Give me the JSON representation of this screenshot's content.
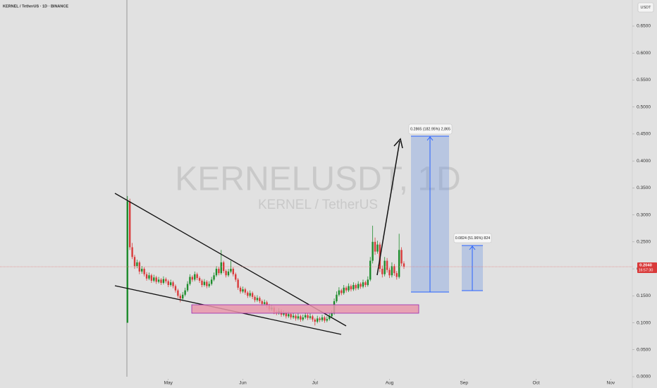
{
  "header": {
    "title": "KERNEL / TetherUS · 1D · BINANCE",
    "currency": "USDT"
  },
  "watermark": {
    "symbol": "KERNELUSDT, 1D",
    "name": "KERNEL / TetherUS"
  },
  "annotations": {
    "measure_1": "0.2865 (182.95%) 2,865",
    "measure_2": "0.0824 (51.96%) 824"
  },
  "last_price": {
    "value": 0.204,
    "label": "0.2040",
    "countdown": "16:57:30"
  },
  "chart_data": {
    "type": "candlestick",
    "up_color": "#1e8c2c",
    "down_color": "#d93a3a",
    "xlim": [
      -53,
      210
    ],
    "xticks": [
      {
        "value": 17,
        "label": "May"
      },
      {
        "value": 48,
        "label": "Jun"
      },
      {
        "value": 78,
        "label": "Jul"
      },
      {
        "value": 109,
        "label": "Aug"
      },
      {
        "value": 140,
        "label": "Sep"
      },
      {
        "value": 170,
        "label": "Oct"
      },
      {
        "value": 201,
        "label": "Nov"
      }
    ],
    "ylim": [
      0,
      0.69
    ],
    "yticks": [
      {
        "value": 0,
        "label": "0.0000"
      },
      {
        "value": 0.05,
        "label": "0.0500"
      },
      {
        "value": 0.1,
        "label": "0.1000"
      },
      {
        "value": 0.15,
        "label": "0.1500"
      },
      {
        "value": 0.2,
        "label": "0.2000"
      },
      {
        "value": 0.25,
        "label": "0.2500"
      },
      {
        "value": 0.3,
        "label": "0.3000"
      },
      {
        "value": 0.35,
        "label": "0.3500"
      },
      {
        "value": 0.4,
        "label": "0.4000"
      },
      {
        "value": 0.45,
        "label": "0.4500"
      },
      {
        "value": 0.5,
        "label": "0.5000"
      },
      {
        "value": 0.55,
        "label": "0.5500"
      },
      {
        "value": 0.6,
        "label": "0.6000"
      },
      {
        "value": 0.65,
        "label": "0.6500"
      }
    ],
    "candles": [
      [
        0.1,
        0.335,
        0.1,
        0.325
      ],
      [
        0.325,
        0.33,
        0.235,
        0.24
      ],
      [
        0.24,
        0.248,
        0.218,
        0.222
      ],
      [
        0.222,
        0.226,
        0.2,
        0.205
      ],
      [
        0.205,
        0.217,
        0.201,
        0.212
      ],
      [
        0.212,
        0.215,
        0.19,
        0.195
      ],
      [
        0.195,
        0.205,
        0.191,
        0.2
      ],
      [
        0.2,
        0.203,
        0.186,
        0.19
      ],
      [
        0.19,
        0.194,
        0.178,
        0.182
      ],
      [
        0.182,
        0.193,
        0.179,
        0.188
      ],
      [
        0.188,
        0.191,
        0.174,
        0.178
      ],
      [
        0.178,
        0.189,
        0.175,
        0.184
      ],
      [
        0.184,
        0.187,
        0.172,
        0.176
      ],
      [
        0.176,
        0.185,
        0.173,
        0.18
      ],
      [
        0.18,
        0.183,
        0.17,
        0.174
      ],
      [
        0.174,
        0.186,
        0.171,
        0.181
      ],
      [
        0.181,
        0.184,
        0.173,
        0.177
      ],
      [
        0.177,
        0.18,
        0.166,
        0.17
      ],
      [
        0.17,
        0.18,
        0.167,
        0.175
      ],
      [
        0.175,
        0.178,
        0.164,
        0.168
      ],
      [
        0.168,
        0.171,
        0.156,
        0.16
      ],
      [
        0.16,
        0.163,
        0.146,
        0.15
      ],
      [
        0.15,
        0.154,
        0.138,
        0.145
      ],
      [
        0.145,
        0.157,
        0.142,
        0.152
      ],
      [
        0.152,
        0.165,
        0.149,
        0.16
      ],
      [
        0.16,
        0.177,
        0.157,
        0.172
      ],
      [
        0.172,
        0.19,
        0.169,
        0.185
      ],
      [
        0.185,
        0.188,
        0.176,
        0.18
      ],
      [
        0.18,
        0.195,
        0.177,
        0.19
      ],
      [
        0.19,
        0.193,
        0.179,
        0.183
      ],
      [
        0.183,
        0.186,
        0.174,
        0.178
      ],
      [
        0.178,
        0.181,
        0.166,
        0.17
      ],
      [
        0.17,
        0.181,
        0.167,
        0.176
      ],
      [
        0.176,
        0.179,
        0.164,
        0.168
      ],
      [
        0.168,
        0.177,
        0.165,
        0.172
      ],
      [
        0.172,
        0.185,
        0.169,
        0.18
      ],
      [
        0.18,
        0.193,
        0.177,
        0.188
      ],
      [
        0.188,
        0.205,
        0.185,
        0.2
      ],
      [
        0.2,
        0.204,
        0.188,
        0.192
      ],
      [
        0.192,
        0.235,
        0.189,
        0.212
      ],
      [
        0.212,
        0.215,
        0.192,
        0.196
      ],
      [
        0.196,
        0.199,
        0.184,
        0.188
      ],
      [
        0.188,
        0.2,
        0.185,
        0.195
      ],
      [
        0.195,
        0.215,
        0.192,
        0.2
      ],
      [
        0.2,
        0.203,
        0.186,
        0.19
      ],
      [
        0.19,
        0.193,
        0.176,
        0.18
      ],
      [
        0.18,
        0.183,
        0.161,
        0.165
      ],
      [
        0.165,
        0.168,
        0.154,
        0.158
      ],
      [
        0.158,
        0.167,
        0.155,
        0.162
      ],
      [
        0.162,
        0.165,
        0.152,
        0.156
      ],
      [
        0.156,
        0.159,
        0.146,
        0.15
      ],
      [
        0.15,
        0.16,
        0.147,
        0.155
      ],
      [
        0.155,
        0.158,
        0.144,
        0.148
      ],
      [
        0.148,
        0.151,
        0.138,
        0.142
      ],
      [
        0.142,
        0.151,
        0.139,
        0.146
      ],
      [
        0.146,
        0.149,
        0.136,
        0.14
      ],
      [
        0.14,
        0.143,
        0.131,
        0.135
      ],
      [
        0.135,
        0.143,
        0.132,
        0.138
      ],
      [
        0.138,
        0.141,
        0.128,
        0.132
      ],
      [
        0.132,
        0.135,
        0.121,
        0.125
      ],
      [
        0.125,
        0.133,
        0.122,
        0.128
      ],
      [
        0.128,
        0.131,
        0.116,
        0.12
      ],
      [
        0.12,
        0.123,
        0.114,
        0.118
      ],
      [
        0.118,
        0.127,
        0.115,
        0.122
      ],
      [
        0.122,
        0.125,
        0.111,
        0.115
      ],
      [
        0.115,
        0.123,
        0.112,
        0.118
      ],
      [
        0.118,
        0.121,
        0.108,
        0.112
      ],
      [
        0.112,
        0.121,
        0.109,
        0.116
      ],
      [
        0.116,
        0.119,
        0.106,
        0.11
      ],
      [
        0.11,
        0.118,
        0.107,
        0.113
      ],
      [
        0.113,
        0.116,
        0.104,
        0.108
      ],
      [
        0.108,
        0.117,
        0.105,
        0.112
      ],
      [
        0.112,
        0.115,
        0.102,
        0.106
      ],
      [
        0.106,
        0.115,
        0.103,
        0.11
      ],
      [
        0.11,
        0.119,
        0.107,
        0.114
      ],
      [
        0.114,
        0.117,
        0.105,
        0.109
      ],
      [
        0.109,
        0.117,
        0.106,
        0.112
      ],
      [
        0.112,
        0.115,
        0.102,
        0.106
      ],
      [
        0.106,
        0.109,
        0.095,
        0.102
      ],
      [
        0.102,
        0.113,
        0.099,
        0.108
      ],
      [
        0.108,
        0.111,
        0.101,
        0.105
      ],
      [
        0.105,
        0.115,
        0.102,
        0.11
      ],
      [
        0.11,
        0.113,
        0.1,
        0.104
      ],
      [
        0.104,
        0.112,
        0.101,
        0.107
      ],
      [
        0.107,
        0.117,
        0.104,
        0.112
      ],
      [
        0.112,
        0.123,
        0.109,
        0.118
      ],
      [
        0.118,
        0.145,
        0.115,
        0.14
      ],
      [
        0.14,
        0.158,
        0.137,
        0.152
      ],
      [
        0.152,
        0.166,
        0.149,
        0.16
      ],
      [
        0.16,
        0.163,
        0.151,
        0.155
      ],
      [
        0.155,
        0.17,
        0.152,
        0.165
      ],
      [
        0.165,
        0.168,
        0.156,
        0.16
      ],
      [
        0.16,
        0.173,
        0.157,
        0.168
      ],
      [
        0.168,
        0.171,
        0.158,
        0.162
      ],
      [
        0.162,
        0.175,
        0.159,
        0.17
      ],
      [
        0.17,
        0.173,
        0.16,
        0.164
      ],
      [
        0.164,
        0.177,
        0.161,
        0.172
      ],
      [
        0.172,
        0.175,
        0.163,
        0.167
      ],
      [
        0.167,
        0.18,
        0.164,
        0.175
      ],
      [
        0.175,
        0.178,
        0.166,
        0.17
      ],
      [
        0.17,
        0.186,
        0.167,
        0.18
      ],
      [
        0.18,
        0.222,
        0.177,
        0.215
      ],
      [
        0.215,
        0.28,
        0.21,
        0.25
      ],
      [
        0.25,
        0.258,
        0.226,
        0.232
      ],
      [
        0.232,
        0.252,
        0.228,
        0.245
      ],
      [
        0.245,
        0.249,
        0.194,
        0.2
      ],
      [
        0.2,
        0.206,
        0.184,
        0.19
      ],
      [
        0.19,
        0.222,
        0.186,
        0.215
      ],
      [
        0.215,
        0.22,
        0.193,
        0.198
      ],
      [
        0.198,
        0.202,
        0.183,
        0.188
      ],
      [
        0.188,
        0.212,
        0.184,
        0.205
      ],
      [
        0.205,
        0.209,
        0.187,
        0.192
      ],
      [
        0.192,
        0.196,
        0.18,
        0.185
      ],
      [
        0.185,
        0.265,
        0.182,
        0.235
      ],
      [
        0.235,
        0.24,
        0.205,
        0.21
      ],
      [
        0.21,
        0.214,
        0.2,
        0.204
      ]
    ]
  }
}
